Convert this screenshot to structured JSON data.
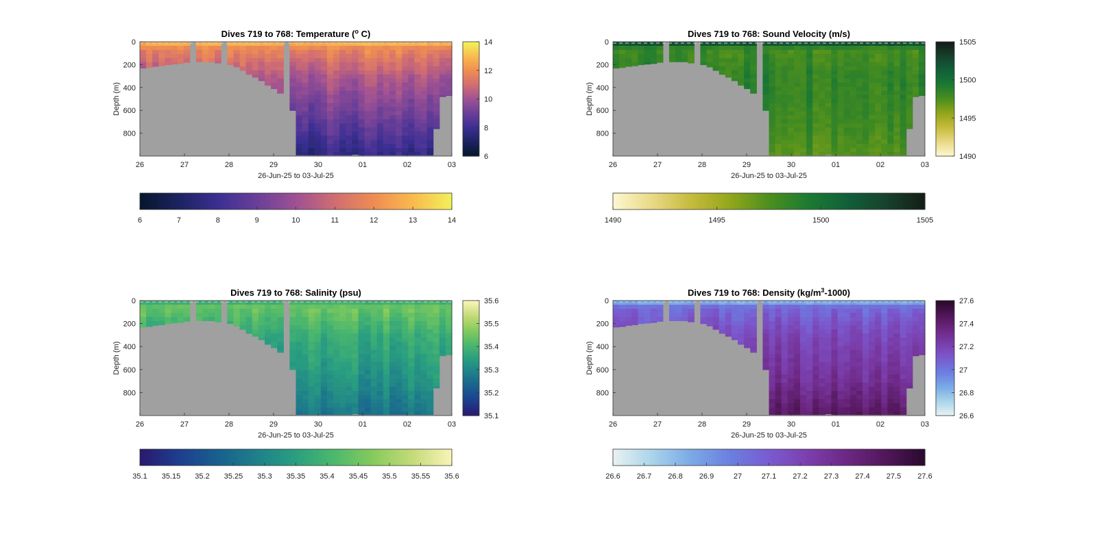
{
  "chart_data": [
    {
      "type": "heatmap",
      "title": "Dives 719 to 768: Temperature (",
      "title_sup": "o",
      "title_end": " C)",
      "xlabel": "26-Jun-25 to 03-Jul-25",
      "ylabel": "Depth (m)",
      "x_ticks": [
        "26",
        "27",
        "28",
        "29",
        "30",
        "01",
        "02",
        "03"
      ],
      "xlim": [
        0,
        7
      ],
      "y_ticks": [
        "0",
        "200",
        "400",
        "600",
        "800"
      ],
      "ylim": [
        1000,
        0
      ],
      "colormap": [
        "#06172c",
        "#1d2362",
        "#3c2f93",
        "#6a3f98",
        "#9e5193",
        "#d06d72",
        "#ee8c54",
        "#f9b84e",
        "#f2ef5a"
      ],
      "clim": [
        6,
        14
      ],
      "right_colorbar_ticks": [
        "6",
        "8",
        "10",
        "12",
        "14"
      ],
      "bottom_colorbar_ticks": [
        "6",
        "7",
        "8",
        "9",
        "10",
        "11",
        "12",
        "13",
        "14"
      ],
      "profile": {
        "surface": 13.2,
        "top": 11.8,
        "mid": 10.3,
        "deep": 8.8,
        "bottom": 7.6
      }
    },
    {
      "type": "heatmap",
      "title": "Dives 719 to 768: Sound Velocity (m/s)",
      "xlabel": "26-Jun-25 to 03-Jul-25",
      "ylabel": "Depth (m)",
      "x_ticks": [
        "26",
        "27",
        "28",
        "29",
        "30",
        "01",
        "02",
        "03"
      ],
      "xlim": [
        0,
        7
      ],
      "y_ticks": [
        "0",
        "200",
        "400",
        "600",
        "800"
      ],
      "ylim": [
        1000,
        0
      ],
      "colormap": [
        "#fdf6cd",
        "#e8d884",
        "#c5bb3c",
        "#93a61b",
        "#4c8f1e",
        "#1d7a31",
        "#11613a",
        "#17432d",
        "#141f18"
      ],
      "clim": [
        1490,
        1505
      ],
      "right_colorbar_ticks": [
        "1490",
        "1495",
        "1500",
        "1505"
      ],
      "bottom_colorbar_ticks": [
        "1490",
        "1495",
        "1500",
        "1505"
      ],
      "profile": {
        "surface": 1503.8,
        "top": 1498.0,
        "mid": 1498.8,
        "deep": 1498.4,
        "bottom": 1497.6
      }
    },
    {
      "type": "heatmap",
      "title": "Dives 719 to 768: Salinity (psu)",
      "xlabel": "26-Jun-25 to 03-Jul-25",
      "ylabel": "Depth (m)",
      "x_ticks": [
        "26",
        "27",
        "28",
        "29",
        "30",
        "01",
        "02",
        "03"
      ],
      "xlim": [
        0,
        7
      ],
      "y_ticks": [
        "0",
        "200",
        "400",
        "600",
        "800"
      ],
      "ylim": [
        1000,
        0
      ],
      "colormap": [
        "#2a1a6f",
        "#1d3f8f",
        "#19608e",
        "#1f808a",
        "#2a9f80",
        "#4db86c",
        "#86cb5c",
        "#c3da78",
        "#f8f3b6"
      ],
      "clim": [
        35.1,
        35.6
      ],
      "right_colorbar_ticks": [
        "35.1",
        "35.2",
        "35.3",
        "35.4",
        "35.5",
        "35.6"
      ],
      "bottom_colorbar_ticks": [
        "35.1",
        "35.15",
        "35.2",
        "35.25",
        "35.3",
        "35.35",
        "35.4",
        "35.45",
        "35.5",
        "35.55",
        "35.6"
      ],
      "profile": {
        "surface": 35.37,
        "top": 35.45,
        "mid": 35.38,
        "deep": 35.32,
        "bottom": 35.26
      }
    },
    {
      "type": "heatmap",
      "title": "Dives 719 to 768: Density (kg/m",
      "title_sup": "3",
      "title_end": "-1000)",
      "xlabel": "26-Jun-25 to 03-Jul-25",
      "ylabel": "Depth (m)",
      "x_ticks": [
        "26",
        "27",
        "28",
        "29",
        "30",
        "01",
        "02",
        "03"
      ],
      "xlim": [
        0,
        7
      ],
      "y_ticks": [
        "0",
        "200",
        "400",
        "600",
        "800"
      ],
      "ylim": [
        1000,
        0
      ],
      "colormap": [
        "#e6f1f2",
        "#a8d3ea",
        "#7aa9e6",
        "#6b7fe0",
        "#7a5bd0",
        "#7b3fad",
        "#6d2884",
        "#52175a",
        "#2b0a2e"
      ],
      "clim": [
        26.6,
        27.6
      ],
      "right_colorbar_ticks": [
        "26.6",
        "26.8",
        "27",
        "27.2",
        "27.4",
        "27.6"
      ],
      "bottom_colorbar_ticks": [
        "26.6",
        "26.7",
        "26.8",
        "26.9",
        "27",
        "27.1",
        "27.2",
        "27.3",
        "27.4",
        "27.5",
        "27.6"
      ],
      "profile": {
        "surface": 26.78,
        "top": 27.05,
        "mid": 27.18,
        "deep": 27.3,
        "bottom": 27.45
      }
    }
  ],
  "nodata_color": "#a0a0a0",
  "dives": {
    "count": 50,
    "max_depth_m": [
      230,
      225,
      215,
      210,
      200,
      195,
      190,
      180,
      1000,
      175,
      175,
      175,
      185,
      1000,
      200,
      220,
      250,
      285,
      310,
      340,
      380,
      410,
      450,
      1000,
      600,
      990,
      990,
      990,
      990,
      990,
      990,
      990,
      990,
      990,
      985,
      990,
      990,
      990,
      990,
      990,
      990,
      990,
      990,
      990,
      990,
      990,
      990,
      760,
      480,
      470
    ]
  }
}
